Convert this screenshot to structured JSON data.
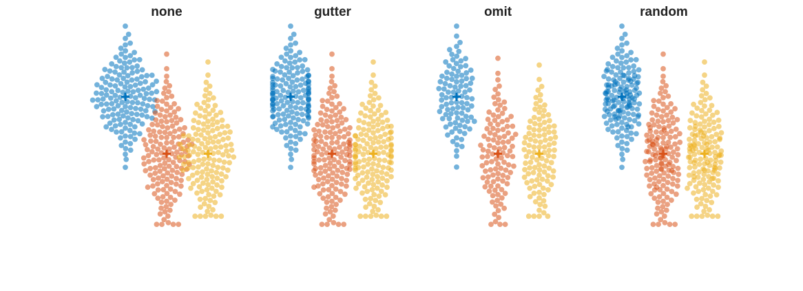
{
  "chart_data": [
    {
      "type": "scatter",
      "subtype": "swarm",
      "title": "none",
      "overflow_method": "none",
      "categories": [
        "1",
        "2",
        "3"
      ],
      "series": [
        {
          "color": "#0072BD",
          "n": 150,
          "center": 0,
          "mean": 0,
          "min": -2.6,
          "max": 2.6
        },
        {
          "color": "#D95319",
          "n": 150,
          "center": 0,
          "mean": -2.1,
          "min": -4.7,
          "max": 2.3
        },
        {
          "color": "#EDB120",
          "n": 150,
          "center": 0,
          "mean": -2.1,
          "min": -4.4,
          "max": 2.1
        }
      ],
      "y_range": [
        -5.0,
        2.6
      ],
      "axis_visible": false
    },
    {
      "type": "scatter",
      "subtype": "swarm",
      "title": "gutter",
      "overflow_method": "gutter",
      "categories": [
        "1",
        "2",
        "3"
      ],
      "series": [
        {
          "color": "#0072BD",
          "n": 150,
          "center": 0,
          "mean": 0,
          "min": -2.6,
          "max": 2.6
        },
        {
          "color": "#D95319",
          "n": 150,
          "center": 0,
          "mean": -2.1,
          "min": -4.7,
          "max": 2.3
        },
        {
          "color": "#EDB120",
          "n": 150,
          "center": 0,
          "mean": -2.1,
          "min": -4.4,
          "max": 2.1
        }
      ],
      "y_range": [
        -5.0,
        2.6
      ],
      "axis_visible": false
    },
    {
      "type": "scatter",
      "subtype": "swarm",
      "title": "omit",
      "overflow_method": "omit",
      "categories": [
        "1",
        "2",
        "3"
      ],
      "series": [
        {
          "color": "#0072BD",
          "n": 110,
          "center": 0,
          "mean": 0,
          "min": -2.6,
          "max": 2.6
        },
        {
          "color": "#D95319",
          "n": 110,
          "center": 0,
          "mean": -2.1,
          "min": -4.7,
          "max": 2.3
        },
        {
          "color": "#EDB120",
          "n": 110,
          "center": 0,
          "mean": -2.1,
          "min": -4.4,
          "max": 2.1
        }
      ],
      "y_range": [
        -5.0,
        2.6
      ],
      "axis_visible": false
    },
    {
      "type": "scatter",
      "subtype": "swarm",
      "title": "random",
      "overflow_method": "random",
      "categories": [
        "1",
        "2",
        "3"
      ],
      "series": [
        {
          "color": "#0072BD",
          "n": 150,
          "center": 0,
          "mean": 0,
          "min": -2.6,
          "max": 2.6
        },
        {
          "color": "#D95319",
          "n": 150,
          "center": 0,
          "mean": -2.1,
          "min": -4.7,
          "max": 2.3
        },
        {
          "color": "#EDB120",
          "n": 150,
          "center": 0,
          "mean": -2.1,
          "min": -4.4,
          "max": 2.1
        }
      ],
      "y_range": [
        -5.0,
        2.6
      ],
      "axis_visible": false
    }
  ]
}
